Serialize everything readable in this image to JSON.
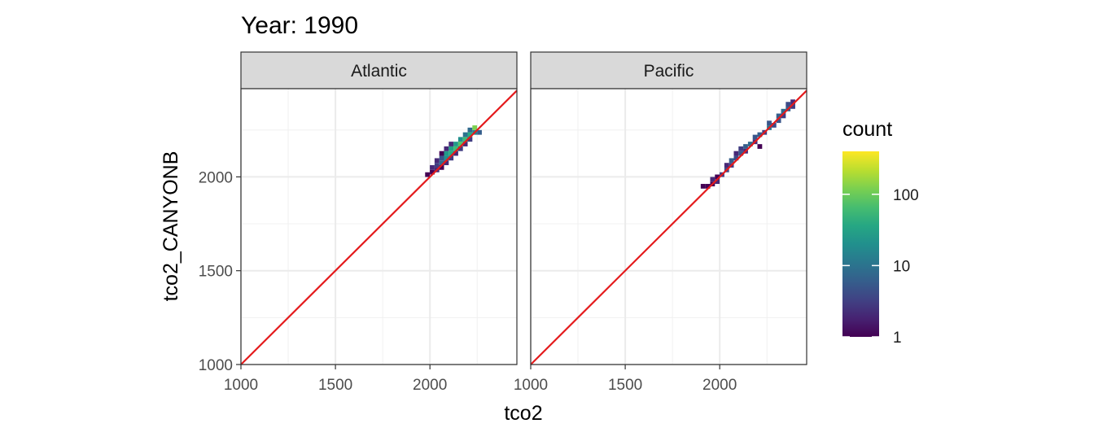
{
  "chart_data": {
    "type": "heatmap",
    "title": "Year: 1990",
    "xlabel": "tco2",
    "ylabel": "tco2_CANYONB",
    "xlim": [
      1000,
      2460
    ],
    "ylim": [
      1000,
      2470
    ],
    "x_ticks": [
      1000,
      1500,
      2000
    ],
    "y_ticks": [
      1000,
      1500,
      2000
    ],
    "grid": true,
    "bin_width": 25,
    "reference_line": {
      "slope": 1,
      "intercept": 0,
      "color": "#e41a1c"
    },
    "legend": {
      "title": "count",
      "placement": "right",
      "scale": "log10",
      "breaks": [
        1,
        10,
        100
      ],
      "break_labels": [
        "1",
        "10",
        "100"
      ],
      "max_count": 400,
      "colormap": "viridis"
    },
    "panels": [
      {
        "strip_label": "Atlantic",
        "bins": [
          {
            "x": 1987,
            "y": 2012,
            "count": 1
          },
          {
            "x": 2012,
            "y": 2025,
            "count": 1
          },
          {
            "x": 2012,
            "y": 2050,
            "count": 2
          },
          {
            "x": 2037,
            "y": 2037,
            "count": 2
          },
          {
            "x": 2037,
            "y": 2062,
            "count": 3
          },
          {
            "x": 2037,
            "y": 2087,
            "count": 2
          },
          {
            "x": 2062,
            "y": 2050,
            "count": 1
          },
          {
            "x": 2062,
            "y": 2075,
            "count": 8
          },
          {
            "x": 2062,
            "y": 2100,
            "count": 5
          },
          {
            "x": 2062,
            "y": 2125,
            "count": 1
          },
          {
            "x": 2087,
            "y": 2075,
            "count": 2
          },
          {
            "x": 2087,
            "y": 2100,
            "count": 20
          },
          {
            "x": 2087,
            "y": 2125,
            "count": 25
          },
          {
            "x": 2087,
            "y": 2150,
            "count": 2
          },
          {
            "x": 2112,
            "y": 2100,
            "count": 3
          },
          {
            "x": 2112,
            "y": 2125,
            "count": 40
          },
          {
            "x": 2112,
            "y": 2150,
            "count": 30
          },
          {
            "x": 2112,
            "y": 2175,
            "count": 2
          },
          {
            "x": 2137,
            "y": 2125,
            "count": 2
          },
          {
            "x": 2137,
            "y": 2150,
            "count": 60
          },
          {
            "x": 2137,
            "y": 2175,
            "count": 25
          },
          {
            "x": 2162,
            "y": 2150,
            "count": 3
          },
          {
            "x": 2162,
            "y": 2175,
            "count": 80
          },
          {
            "x": 2162,
            "y": 2200,
            "count": 20
          },
          {
            "x": 2187,
            "y": 2175,
            "count": 2
          },
          {
            "x": 2187,
            "y": 2200,
            "count": 60
          },
          {
            "x": 2187,
            "y": 2225,
            "count": 10
          },
          {
            "x": 2212,
            "y": 2200,
            "count": 3
          },
          {
            "x": 2212,
            "y": 2225,
            "count": 40
          },
          {
            "x": 2212,
            "y": 2250,
            "count": 8
          },
          {
            "x": 2237,
            "y": 2237,
            "count": 15
          },
          {
            "x": 2237,
            "y": 2262,
            "count": 120
          },
          {
            "x": 2262,
            "y": 2237,
            "count": 6
          }
        ]
      },
      {
        "strip_label": "Pacific",
        "bins": [
          {
            "x": 1912,
            "y": 1950,
            "count": 1
          },
          {
            "x": 1937,
            "y": 1950,
            "count": 1
          },
          {
            "x": 1962,
            "y": 1962,
            "count": 1
          },
          {
            "x": 1962,
            "y": 1987,
            "count": 2
          },
          {
            "x": 1987,
            "y": 1975,
            "count": 2
          },
          {
            "x": 1987,
            "y": 2000,
            "count": 1
          },
          {
            "x": 2012,
            "y": 2012,
            "count": 3
          },
          {
            "x": 2037,
            "y": 2037,
            "count": 4
          },
          {
            "x": 2037,
            "y": 2062,
            "count": 2
          },
          {
            "x": 2062,
            "y": 2062,
            "count": 3
          },
          {
            "x": 2062,
            "y": 2087,
            "count": 6
          },
          {
            "x": 2087,
            "y": 2100,
            "count": 4
          },
          {
            "x": 2087,
            "y": 2125,
            "count": 2
          },
          {
            "x": 2112,
            "y": 2125,
            "count": 5
          },
          {
            "x": 2112,
            "y": 2150,
            "count": 3
          },
          {
            "x": 2137,
            "y": 2137,
            "count": 2
          },
          {
            "x": 2137,
            "y": 2162,
            "count": 6
          },
          {
            "x": 2162,
            "y": 2175,
            "count": 8
          },
          {
            "x": 2187,
            "y": 2187,
            "count": 2
          },
          {
            "x": 2187,
            "y": 2212,
            "count": 5
          },
          {
            "x": 2212,
            "y": 2162,
            "count": 1
          },
          {
            "x": 2212,
            "y": 2225,
            "count": 6
          },
          {
            "x": 2237,
            "y": 2237,
            "count": 3
          },
          {
            "x": 2262,
            "y": 2262,
            "count": 10
          },
          {
            "x": 2262,
            "y": 2287,
            "count": 5
          },
          {
            "x": 2287,
            "y": 2275,
            "count": 4
          },
          {
            "x": 2312,
            "y": 2300,
            "count": 5
          },
          {
            "x": 2312,
            "y": 2325,
            "count": 6
          },
          {
            "x": 2337,
            "y": 2325,
            "count": 3
          },
          {
            "x": 2337,
            "y": 2350,
            "count": 8
          },
          {
            "x": 2362,
            "y": 2362,
            "count": 6
          },
          {
            "x": 2362,
            "y": 2387,
            "count": 4
          },
          {
            "x": 2387,
            "y": 2375,
            "count": 3
          },
          {
            "x": 2387,
            "y": 2400,
            "count": 2
          }
        ]
      }
    ]
  }
}
